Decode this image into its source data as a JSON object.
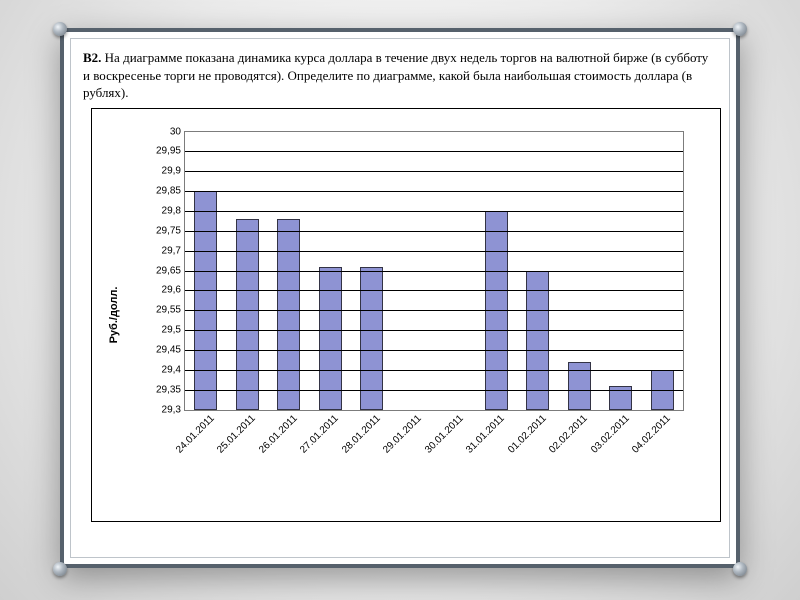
{
  "problem": {
    "label": "B2.",
    "text": "На диаграмме показана динамика курса доллара в течение двух недель торгов на валютной бирже (в субботу и воскресенье торги не проводятся). Определите по диаграмме, какой была наибольшая стоимость доллара (в рублях)."
  },
  "chart": {
    "type": "bar",
    "ylabel": "Руб./долл.",
    "ylim": [
      29.3,
      30.0
    ],
    "ytick_step": 0.05,
    "yticks": [
      "29,3",
      "29,35",
      "29,4",
      "29,45",
      "29,5",
      "29,55",
      "29,6",
      "29,65",
      "29,7",
      "29,75",
      "29,8",
      "29,85",
      "29,9",
      "29,95",
      "30"
    ],
    "categories": [
      "24.01.2011",
      "25.01.2011",
      "26.01.2011",
      "27.01.2011",
      "28.01.2011",
      "29.01.2011",
      "30.01.2011",
      "31.01.2011",
      "01.02.2011",
      "02.02.2011",
      "03.02.2011",
      "04.02.2011"
    ],
    "values": [
      29.85,
      29.78,
      29.78,
      29.66,
      29.66,
      null,
      null,
      29.8,
      29.65,
      29.42,
      29.36,
      29.4
    ],
    "bar_color": "#8e93d3",
    "bar_border_color": "#333344",
    "grid_color": "#000000",
    "plot_border_color": "#7c7c7c",
    "outer_border_color": "#000000",
    "background_color": "#ffffff",
    "tick_fontsize": 10,
    "label_fontsize": 11,
    "bar_width_ratio": 0.55
  },
  "frame": {
    "border_color": "#56616c",
    "background": "#ffffff"
  }
}
